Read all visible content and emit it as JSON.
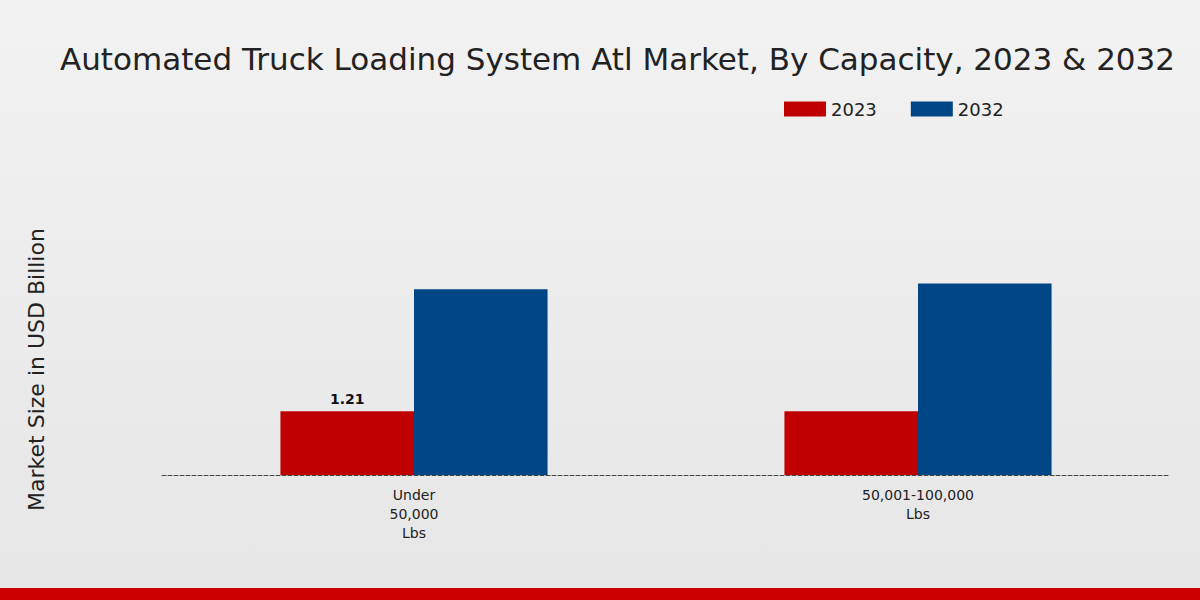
{
  "chart_data": {
    "type": "bar",
    "title": "Automated Truck Loading System Atl Market, By Capacity, 2023 & 2032",
    "y_label": "Market Size in USD Billion",
    "categories": [
      "Under\n50,000\nLbs",
      "50,001-100,000\nLbs"
    ],
    "series": [
      {
        "name": "2023",
        "color": "#c00000",
        "values": [
          1.21,
          1.21
        ],
        "data_labels": true,
        "value_labels": [
          "1.21",
          null
        ]
      },
      {
        "name": "2032",
        "color": "#004687",
        "values": [
          3.52,
          3.63
        ]
      }
    ],
    "ylim": [
      0,
      4
    ],
    "grid": false,
    "legend": "top-right",
    "tick_labels": "x"
  }
}
